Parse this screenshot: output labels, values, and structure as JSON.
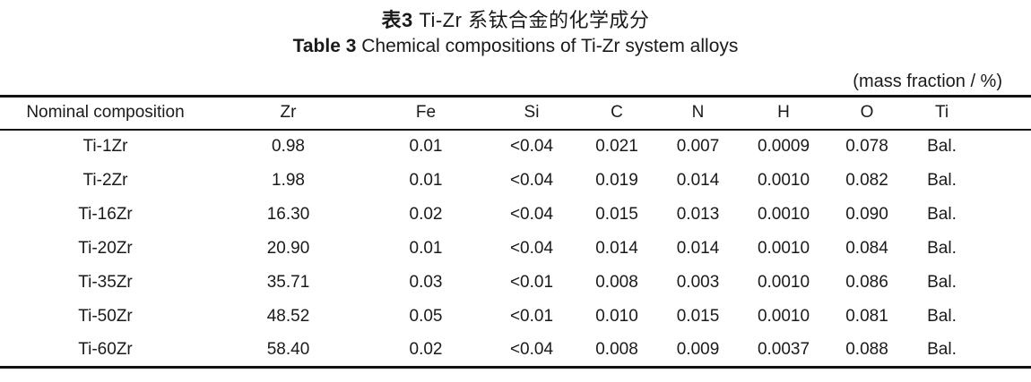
{
  "titles": {
    "zh_label": "表3",
    "zh_text": "  Ti-Zr 系钛合金的化学成分",
    "en_label": "Table 3",
    "en_text": " Chemical compositions of Ti-Zr system alloys"
  },
  "unit_note": "(mass fraction / %)",
  "table": {
    "headers": [
      "Nominal composition",
      "Zr",
      "Fe",
      "Si",
      "C",
      "N",
      "H",
      "O",
      "Ti"
    ],
    "rows": [
      [
        "Ti-1Zr",
        "0.98",
        "0.01",
        "<0.04",
        "0.021",
        "0.007",
        "0.0009",
        "0.078",
        "Bal."
      ],
      [
        "Ti-2Zr",
        "1.98",
        "0.01",
        "<0.04",
        "0.019",
        "0.014",
        "0.0010",
        "0.082",
        "Bal."
      ],
      [
        "Ti-16Zr",
        "16.30",
        "0.02",
        "<0.04",
        "0.015",
        "0.013",
        "0.0010",
        "0.090",
        "Bal."
      ],
      [
        "Ti-20Zr",
        "20.90",
        "0.01",
        "<0.04",
        "0.014",
        "0.014",
        "0.0010",
        "0.084",
        "Bal."
      ],
      [
        "Ti-35Zr",
        "35.71",
        "0.03",
        "<0.01",
        "0.008",
        "0.003",
        "0.0010",
        "0.086",
        "Bal."
      ],
      [
        "Ti-50Zr",
        "48.52",
        "0.05",
        "<0.01",
        "0.010",
        "0.015",
        "0.0010",
        "0.081",
        "Bal."
      ],
      [
        "Ti-60Zr",
        "58.40",
        "0.02",
        "<0.04",
        "0.008",
        "0.009",
        "0.0037",
        "0.088",
        "Bal."
      ]
    ]
  }
}
